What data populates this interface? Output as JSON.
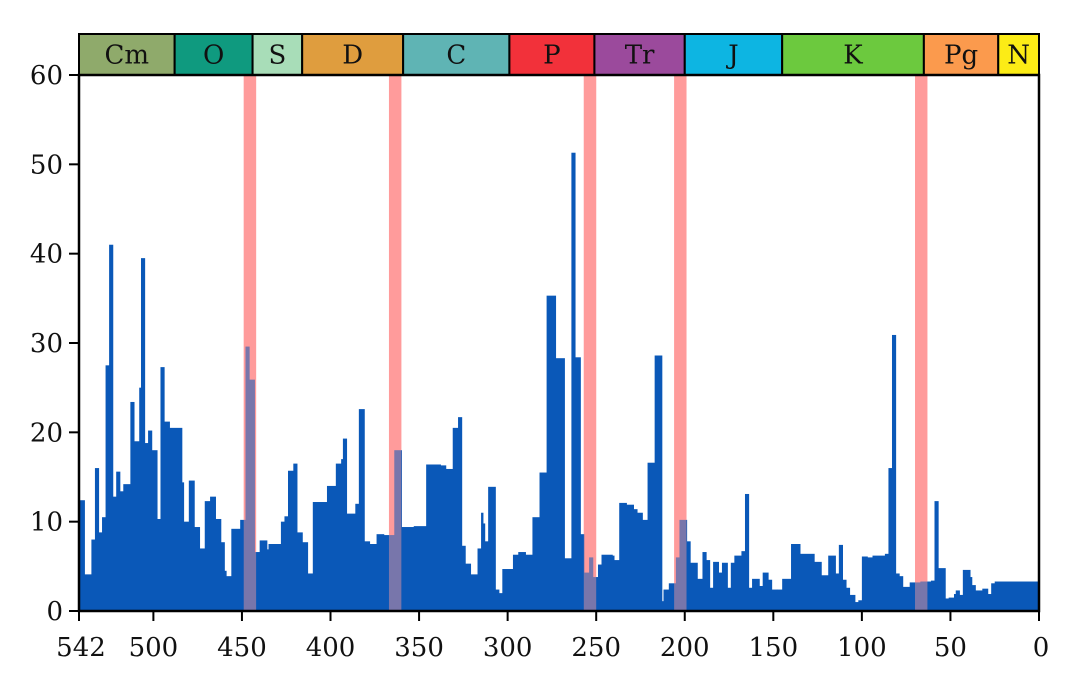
{
  "chart_data": {
    "type": "bar",
    "title": "",
    "xlabel": "",
    "ylabel": "",
    "xlim": [
      542,
      0
    ],
    "ylim": [
      0,
      60
    ],
    "grid": false,
    "xticks": [
      542,
      500,
      450,
      400,
      350,
      300,
      250,
      200,
      150,
      100,
      50,
      0
    ],
    "yticks": [
      0,
      10,
      20,
      30,
      40,
      50,
      60
    ],
    "bar_color": "#0a58b8",
    "periods": [
      {
        "label": "Cm",
        "start": 542,
        "end": 488,
        "color": "#8faa6b"
      },
      {
        "label": "O",
        "start": 488,
        "end": 444,
        "color": "#0f9a7f"
      },
      {
        "label": "S",
        "start": 444,
        "end": 416,
        "color": "#a8ddb8"
      },
      {
        "label": "D",
        "start": 416,
        "end": 359,
        "color": "#df9d3e"
      },
      {
        "label": "C",
        "start": 359,
        "end": 299,
        "color": "#5fb4b4"
      },
      {
        "label": "P",
        "start": 299,
        "end": 251,
        "color": "#f2313a"
      },
      {
        "label": "Tr",
        "start": 251,
        "end": 200,
        "color": "#9b4a9c"
      },
      {
        "label": "J",
        "start": 200,
        "end": 145,
        "color": "#0db5e2"
      },
      {
        "label": "K",
        "start": 145,
        "end": 65,
        "color": "#6cc93e"
      },
      {
        "label": "Pg",
        "start": 65,
        "end": 23,
        "color": "#fb9a4d"
      },
      {
        "label": "N",
        "start": 23,
        "end": 0,
        "color": "#fcec16"
      }
    ],
    "extinction_bands": [
      {
        "start": 449,
        "end": 442,
        "color": "#ff9c9c"
      },
      {
        "start": 367,
        "end": 360,
        "color": "#ff9c9c"
      },
      {
        "start": 257,
        "end": 250,
        "color": "#ff9c9c"
      },
      {
        "start": 206,
        "end": 199,
        "color": "#ff9c9c"
      },
      {
        "start": 70,
        "end": 63,
        "color": "#ff9c9c"
      }
    ],
    "series": [
      {
        "values": [
          [
            542,
            12.4
          ],
          [
            539,
            4.1
          ],
          [
            535,
            8
          ],
          [
            533,
            16
          ],
          [
            531,
            8.8
          ],
          [
            529,
            10.5
          ],
          [
            527,
            27.5
          ],
          [
            525,
            41
          ],
          [
            523,
            12.8
          ],
          [
            521,
            15.6
          ],
          [
            519,
            13.4
          ],
          [
            517,
            14.2
          ],
          [
            513,
            23.4
          ],
          [
            511,
            19
          ],
          [
            508,
            25
          ],
          [
            507,
            39.5
          ],
          [
            505,
            18.8
          ],
          [
            503,
            20.2
          ],
          [
            501,
            18
          ],
          [
            498,
            10.3
          ],
          [
            496,
            27.3
          ],
          [
            494,
            21.2
          ],
          [
            491,
            20.5
          ],
          [
            484,
            14.4
          ],
          [
            483,
            10
          ],
          [
            480,
            14.6
          ],
          [
            477,
            9.4
          ],
          [
            474,
            7
          ],
          [
            471,
            12.3
          ],
          [
            468,
            12.8
          ],
          [
            465,
            10.3
          ],
          [
            462,
            7.7
          ],
          [
            460,
            4.5
          ],
          [
            459,
            3.9
          ],
          [
            456,
            9.2
          ],
          [
            451,
            10.2
          ],
          [
            448,
            29.6
          ],
          [
            446,
            25.9
          ],
          [
            443,
            6.6
          ],
          [
            440,
            7.9
          ],
          [
            436,
            6.9
          ],
          [
            435,
            7.5
          ],
          [
            428,
            10
          ],
          [
            426,
            10.6
          ],
          [
            424,
            15.7
          ],
          [
            421,
            16.5
          ],
          [
            419,
            8.8
          ],
          [
            416,
            7.7
          ],
          [
            413,
            4.2
          ],
          [
            410,
            12.2
          ],
          [
            402,
            14
          ],
          [
            397,
            16.5
          ],
          [
            394,
            17
          ],
          [
            393,
            19.3
          ],
          [
            391,
            10.9
          ],
          [
            386,
            12
          ],
          [
            384,
            22.6
          ],
          [
            381,
            7.8
          ],
          [
            378,
            7.5
          ],
          [
            374,
            8.6
          ],
          [
            370,
            8.5
          ],
          [
            364,
            18
          ],
          [
            360,
            9.4
          ],
          [
            353,
            9.5
          ],
          [
            346,
            16.4
          ],
          [
            338,
            16.3
          ],
          [
            335,
            15.9
          ],
          [
            331,
            20.5
          ],
          [
            328,
            21.7
          ],
          [
            326,
            7.3
          ],
          [
            324,
            5.3
          ],
          [
            321,
            4.1
          ],
          [
            317,
            7
          ],
          [
            315,
            11
          ],
          [
            314,
            9.8
          ],
          [
            313,
            7.8
          ],
          [
            311,
            13.9
          ],
          [
            307,
            2.4
          ],
          [
            305,
            2
          ],
          [
            303,
            4.7
          ],
          [
            297,
            6.3
          ],
          [
            294,
            6.6
          ],
          [
            290,
            6.3
          ],
          [
            286,
            10.5
          ],
          [
            282,
            15.5
          ],
          [
            278,
            35.3
          ],
          [
            273,
            28.3
          ],
          [
            268,
            5.9
          ],
          [
            264,
            51.3
          ],
          [
            262,
            28.4
          ],
          [
            259,
            8.6
          ],
          [
            257,
            4.3
          ],
          [
            254,
            6
          ],
          [
            252,
            3.8
          ],
          [
            249,
            5.2
          ],
          [
            247,
            6.3
          ],
          [
            241,
            6.2
          ],
          [
            240,
            5.7
          ],
          [
            237,
            12.1
          ],
          [
            233,
            11.9
          ],
          [
            229,
            11.4
          ],
          [
            227,
            11
          ],
          [
            224,
            10.2
          ],
          [
            221,
            16.6
          ],
          [
            217,
            28.6
          ],
          [
            213,
            1.1
          ],
          [
            212,
            2.4
          ],
          [
            209,
            3.1
          ],
          [
            205,
            6
          ],
          [
            203,
            10.2
          ],
          [
            199,
            7.8
          ],
          [
            197,
            5.4
          ],
          [
            193,
            3.6
          ],
          [
            190,
            6.6
          ],
          [
            188,
            5.7
          ],
          [
            186,
            2.6
          ],
          [
            184,
            5.5
          ],
          [
            181,
            4.3
          ],
          [
            179,
            5.4
          ],
          [
            176,
            2.6
          ],
          [
            174,
            5.4
          ],
          [
            172,
            6.2
          ],
          [
            168,
            6.7
          ],
          [
            166,
            13.1
          ],
          [
            164,
            2.6
          ],
          [
            162,
            3.6
          ],
          [
            158,
            2.8
          ],
          [
            156,
            4.3
          ],
          [
            153,
            3.5
          ],
          [
            151,
            2.4
          ],
          [
            148,
            2.4
          ],
          [
            145,
            3.6
          ],
          [
            140,
            7.5
          ],
          [
            135,
            6.4
          ],
          [
            127,
            5.5
          ],
          [
            123,
            4
          ],
          [
            119,
            6.2
          ],
          [
            115,
            4.2
          ],
          [
            113,
            7.4
          ],
          [
            111,
            3.5
          ],
          [
            109,
            2.6
          ],
          [
            107,
            1.8
          ],
          [
            104,
            1
          ],
          [
            102,
            1.2
          ],
          [
            100,
            6.1
          ],
          [
            97,
            6
          ],
          [
            94,
            6.2
          ],
          [
            87,
            6.4
          ],
          [
            85,
            16
          ],
          [
            83,
            30.9
          ],
          [
            81,
            4.2
          ],
          [
            79,
            3.9
          ],
          [
            77,
            2.7
          ],
          [
            73,
            3.2
          ],
          [
            67,
            3.3
          ],
          [
            61,
            3.4
          ],
          [
            59,
            12.3
          ],
          [
            57,
            4.8
          ],
          [
            53,
            1.4
          ],
          [
            51,
            1.5
          ],
          [
            48,
            1.9
          ],
          [
            47,
            2.3
          ],
          [
            45,
            1.8
          ],
          [
            43,
            4.6
          ],
          [
            39,
            3.8
          ],
          [
            38,
            2.9
          ],
          [
            36,
            2.3
          ],
          [
            32,
            2.5
          ],
          [
            29,
            1.9
          ],
          [
            27,
            3.1
          ],
          [
            25,
            3.3
          ]
        ]
      }
    ]
  }
}
